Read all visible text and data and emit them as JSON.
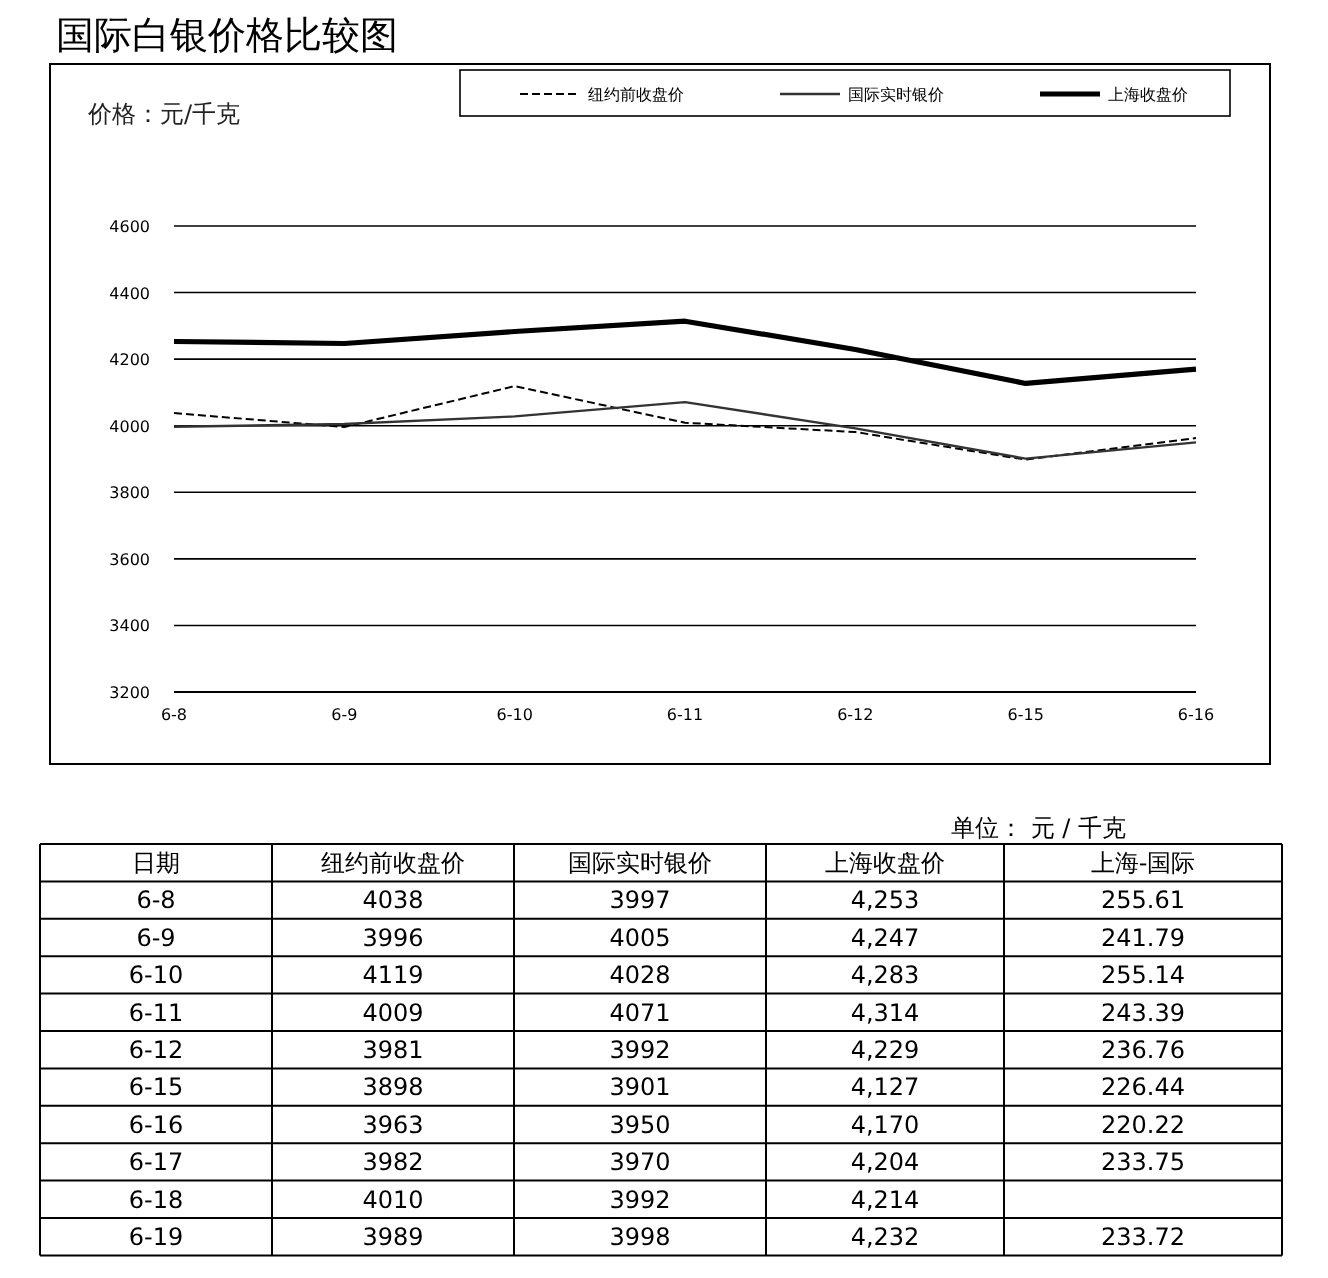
{
  "chart_data": [
    {
      "type": "line",
      "title": "国际白银价格比较图",
      "ylabel": "价格：元/千克",
      "categories": [
        "6-8",
        "6-9",
        "6-10",
        "6-11",
        "6-12",
        "6-15",
        "6-16"
      ],
      "series": [
        {
          "name": "纽约前收盘价",
          "color": "#000000",
          "line_style": "dashed",
          "values": [
            4038,
            3996,
            4119,
            4009,
            3981,
            3898,
            3963
          ]
        },
        {
          "name": "国际实时银价",
          "color": "#333333",
          "line_style": "solid",
          "values": [
            3997,
            4005,
            4028,
            4071,
            3992,
            3901,
            3950
          ]
        },
        {
          "name": "上海收盘价",
          "color": "#000000",
          "line_style": "solid",
          "values": [
            4253,
            4247,
            4283,
            4314,
            4229,
            4127,
            4170
          ]
        }
      ],
      "ylim": [
        3200,
        4600
      ],
      "yticks": [
        3200,
        3400,
        3600,
        3800,
        4000,
        4200,
        4400,
        4600
      ],
      "grid": "y",
      "legend": "top right"
    },
    {
      "type": "other",
      "annotations": [
        "单位： 元 / 千克"
      ],
      "xlabel": "日期",
      "categories": [
        "6-8",
        "6-9",
        "6-10",
        "6-11",
        "6-12",
        "6-15",
        "6-16",
        "6-17",
        "6-18",
        "6-19"
      ],
      "data_labels": true,
      "series": [
        {
          "name": "纽约前收盘价",
          "values": [
            4038,
            3996,
            4119,
            4009,
            3981,
            3898,
            3963,
            3982,
            4010,
            3989
          ]
        },
        {
          "name": "国际实时银价",
          "values": [
            3997,
            4005,
            4028,
            4071,
            3992,
            3901,
            3950,
            3970,
            3992,
            3998
          ]
        },
        {
          "name": "上海收盘价",
          "values": [
            4253,
            4247,
            4283,
            4314,
            4229,
            4127,
            4170,
            4204,
            4214,
            4232
          ],
          "value_labels": [
            "4,253",
            "4,247",
            "4,283",
            "4,314",
            "4,229",
            "4,127",
            "4,170",
            "4,204",
            "4,214",
            "4,232"
          ]
        },
        {
          "name": "上海-国际",
          "values": [
            255.61,
            241.79,
            255.14,
            243.39,
            236.76,
            226.44,
            220.22,
            233.75,
            null,
            233.72
          ]
        }
      ]
    }
  ]
}
